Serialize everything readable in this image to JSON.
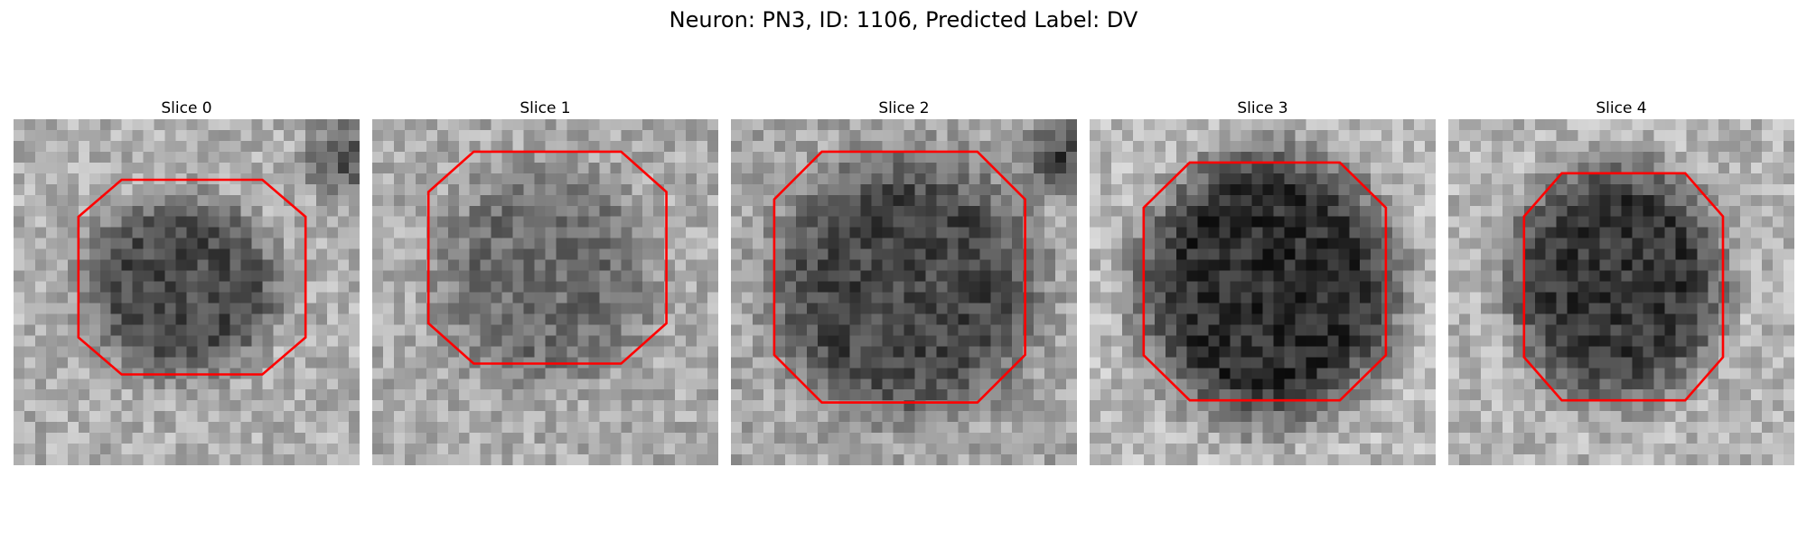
{
  "title": "Neuron: PN3, ID: 1106, Predicted Label: DV",
  "colors": {
    "contour": "#ff0000",
    "background": "#ffffff"
  },
  "panels": [
    {
      "title": "Slice 0"
    },
    {
      "title": "Slice 1"
    },
    {
      "title": "Slice 2"
    },
    {
      "title": "Slice 3"
    },
    {
      "title": "Slice 4"
    }
  ]
}
